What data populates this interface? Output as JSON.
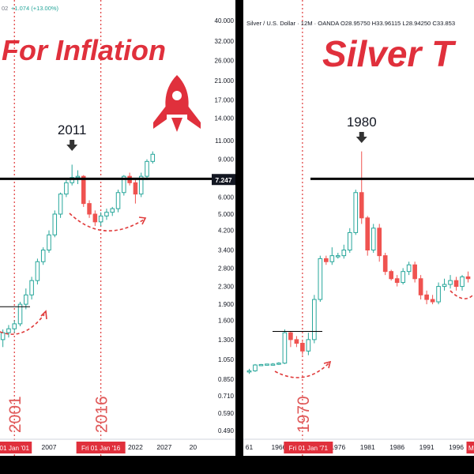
{
  "colors": {
    "up_fill": "#ffffff",
    "up_border": "#26a69a",
    "down": "#ef5350",
    "accent_red": "#e0303c",
    "guide_red": "#e03a3a",
    "axis_text": "#131722",
    "dark_line": "#000000",
    "frame": "#000000"
  },
  "chart_data": [
    {
      "type": "candlestick",
      "title": "For Inflation",
      "header_text": "+1.074 (+13.00%)",
      "header_prefix": "02",
      "y_scale": "log",
      "ylim": [
        0.45,
        42
      ],
      "y_ticks": [
        "40.000",
        "32.000",
        "26.000",
        "21.000",
        "17.000",
        "14.000",
        "11.000",
        "9.000",
        "7.247",
        "6.000",
        "5.000",
        "4.200",
        "3.400",
        "2.800",
        "2.300",
        "1.900",
        "1.600",
        "1.300",
        "1.050",
        "0.850",
        "0.710",
        "0.590",
        "0.490"
      ],
      "price_marker": "7.247",
      "x_ticks": [
        "07",
        "2007",
        "20",
        "2022",
        "2027",
        "20"
      ],
      "x_ticks_values": [
        1996.6,
        2007,
        2012.5,
        2022,
        2027,
        2032
      ],
      "xlim": [
        1998.5,
        2032.5
      ],
      "date_tags": [
        {
          "text": "01 Jan '01",
          "x": 2001
        },
        {
          "text": "Fri 01 Jan '16",
          "x": 2016
        }
      ],
      "vertical_labels": [
        {
          "text": "2001",
          "x": 2001
        },
        {
          "text": "2016",
          "x": 2016
        }
      ],
      "annotations": [
        {
          "text": "2011",
          "x": 2011
        }
      ],
      "horizontal_levels": [
        7.3,
        1.85
      ],
      "candles": [
        {
          "x": 1999,
          "o": 1.3,
          "h": 1.45,
          "l": 1.2,
          "c": 1.4
        },
        {
          "x": 2000,
          "o": 1.4,
          "h": 1.52,
          "l": 1.33,
          "c": 1.46
        },
        {
          "x": 2001,
          "o": 1.46,
          "h": 1.6,
          "l": 1.4,
          "c": 1.54
        },
        {
          "x": 2002,
          "o": 1.54,
          "h": 1.95,
          "l": 1.5,
          "c": 1.9
        },
        {
          "x": 2003,
          "o": 1.9,
          "h": 2.25,
          "l": 1.8,
          "c": 2.1
        },
        {
          "x": 2004,
          "o": 2.1,
          "h": 2.55,
          "l": 2.0,
          "c": 2.45
        },
        {
          "x": 2005,
          "o": 2.45,
          "h": 3.1,
          "l": 2.35,
          "c": 3.0
        },
        {
          "x": 2006,
          "o": 3.0,
          "h": 3.5,
          "l": 2.9,
          "c": 3.4
        },
        {
          "x": 2007,
          "o": 3.4,
          "h": 4.2,
          "l": 3.3,
          "c": 4.0
        },
        {
          "x": 2008,
          "o": 4.0,
          "h": 5.2,
          "l": 3.9,
          "c": 5.0
        },
        {
          "x": 2009,
          "o": 5.0,
          "h": 6.3,
          "l": 4.8,
          "c": 6.2
        },
        {
          "x": 2010,
          "o": 6.2,
          "h": 7.2,
          "l": 6.0,
          "c": 7.0
        },
        {
          "x": 2011,
          "o": 7.0,
          "h": 8.5,
          "l": 6.8,
          "c": 7.4
        },
        {
          "x": 2012,
          "o": 7.4,
          "h": 8.0,
          "l": 6.9,
          "c": 7.5
        },
        {
          "x": 2013,
          "o": 7.5,
          "h": 7.6,
          "l": 5.4,
          "c": 5.6
        },
        {
          "x": 2014,
          "o": 5.6,
          "h": 5.8,
          "l": 4.8,
          "c": 5.0
        },
        {
          "x": 2015,
          "o": 5.0,
          "h": 5.2,
          "l": 4.4,
          "c": 4.6
        },
        {
          "x": 2016,
          "o": 4.6,
          "h": 5.1,
          "l": 4.4,
          "c": 4.9
        },
        {
          "x": 2017,
          "o": 4.9,
          "h": 5.3,
          "l": 4.7,
          "c": 5.1
        },
        {
          "x": 2018,
          "o": 5.1,
          "h": 5.4,
          "l": 4.9,
          "c": 5.3
        },
        {
          "x": 2019,
          "o": 5.3,
          "h": 6.5,
          "l": 5.1,
          "c": 6.3
        },
        {
          "x": 2020,
          "o": 6.3,
          "h": 7.6,
          "l": 6.1,
          "c": 7.5
        },
        {
          "x": 2021,
          "o": 7.5,
          "h": 7.8,
          "l": 6.8,
          "c": 7.0
        },
        {
          "x": 2022,
          "o": 7.0,
          "h": 7.3,
          "l": 5.6,
          "c": 6.2
        },
        {
          "x": 2023,
          "o": 6.2,
          "h": 7.8,
          "l": 6.0,
          "c": 7.5
        },
        {
          "x": 2024,
          "o": 7.5,
          "h": 9.0,
          "l": 7.2,
          "c": 8.8
        },
        {
          "x": 2025,
          "o": 8.8,
          "h": 9.8,
          "l": 8.6,
          "c": 9.5
        }
      ]
    },
    {
      "type": "candlestick",
      "title": "Silver T",
      "header_text": "Silver / U.S. Dollar · 12M · OANDA  O28.95750  H33.96115  L28.94250  C33.853",
      "y_scale": "log",
      "ylim": [
        0.45,
        42
      ],
      "x_ticks": [
        "61",
        "1966",
        "1976",
        "1981",
        "1986",
        "1991",
        "1996"
      ],
      "x_ticks_values": [
        1961,
        1966,
        1976,
        1981,
        1986,
        1991,
        1996
      ],
      "xlim": [
        1960,
        1999
      ],
      "date_tags": [
        {
          "text": "Fri 01 Jan '71",
          "x": 1971
        },
        {
          "text": "Mo",
          "x": 1998.8
        }
      ],
      "vertical_labels": [
        {
          "text": "1970",
          "x": 1970
        }
      ],
      "annotations": [
        {
          "text": "1980",
          "x": 1980
        }
      ],
      "horizontal_levels": [
        7.3,
        1.42
      ],
      "candles": [
        {
          "x": 1961,
          "o": 0.92,
          "h": 0.95,
          "l": 0.9,
          "c": 0.93
        },
        {
          "x": 1962,
          "o": 0.93,
          "h": 1.0,
          "l": 0.92,
          "c": 0.99
        },
        {
          "x": 1963,
          "o": 0.99,
          "h": 1.0,
          "l": 0.98,
          "c": 0.995
        },
        {
          "x": 1964,
          "o": 0.995,
          "h": 1.0,
          "l": 0.99,
          "c": 1.0
        },
        {
          "x": 1965,
          "o": 1.0,
          "h": 1.01,
          "l": 0.99,
          "c": 1.0
        },
        {
          "x": 1966,
          "o": 1.0,
          "h": 1.02,
          "l": 0.99,
          "c": 1.01
        },
        {
          "x": 1967,
          "o": 1.01,
          "h": 1.45,
          "l": 1.0,
          "c": 1.4
        },
        {
          "x": 1968,
          "o": 1.4,
          "h": 1.42,
          "l": 1.2,
          "c": 1.3
        },
        {
          "x": 1969,
          "o": 1.3,
          "h": 1.35,
          "l": 1.2,
          "c": 1.25
        },
        {
          "x": 1970,
          "o": 1.25,
          "h": 1.3,
          "l": 1.1,
          "c": 1.15
        },
        {
          "x": 1971,
          "o": 1.15,
          "h": 1.4,
          "l": 1.1,
          "c": 1.3
        },
        {
          "x": 1972,
          "o": 1.3,
          "h": 2.1,
          "l": 1.25,
          "c": 2.0
        },
        {
          "x": 1973,
          "o": 2.0,
          "h": 3.2,
          "l": 1.95,
          "c": 3.1
        },
        {
          "x": 1974,
          "o": 3.1,
          "h": 3.2,
          "l": 2.9,
          "c": 3.0
        },
        {
          "x": 1975,
          "o": 3.0,
          "h": 3.5,
          "l": 2.9,
          "c": 3.2
        },
        {
          "x": 1976,
          "o": 3.2,
          "h": 3.3,
          "l": 3.1,
          "c": 3.2
        },
        {
          "x": 1977,
          "o": 3.2,
          "h": 3.6,
          "l": 3.1,
          "c": 3.4
        },
        {
          "x": 1978,
          "o": 3.4,
          "h": 4.3,
          "l": 3.3,
          "c": 4.1
        },
        {
          "x": 1979,
          "o": 4.1,
          "h": 6.5,
          "l": 4.0,
          "c": 6.3
        },
        {
          "x": 1980,
          "o": 6.3,
          "h": 9.8,
          "l": 4.5,
          "c": 4.8
        },
        {
          "x": 1981,
          "o": 4.8,
          "h": 4.9,
          "l": 3.2,
          "c": 3.4
        },
        {
          "x": 1982,
          "o": 3.4,
          "h": 4.5,
          "l": 3.3,
          "c": 4.3
        },
        {
          "x": 1983,
          "o": 4.3,
          "h": 4.5,
          "l": 3.0,
          "c": 3.2
        },
        {
          "x": 1984,
          "o": 3.2,
          "h": 3.3,
          "l": 2.6,
          "c": 2.7
        },
        {
          "x": 1985,
          "o": 2.7,
          "h": 2.75,
          "l": 2.45,
          "c": 2.5
        },
        {
          "x": 1986,
          "o": 2.5,
          "h": 2.6,
          "l": 2.3,
          "c": 2.4
        },
        {
          "x": 1987,
          "o": 2.4,
          "h": 2.8,
          "l": 2.35,
          "c": 2.7
        },
        {
          "x": 1988,
          "o": 2.7,
          "h": 3.0,
          "l": 2.6,
          "c": 2.9
        },
        {
          "x": 1989,
          "o": 2.9,
          "h": 3.0,
          "l": 2.4,
          "c": 2.5
        },
        {
          "x": 1990,
          "o": 2.5,
          "h": 2.6,
          "l": 2.0,
          "c": 2.1
        },
        {
          "x": 1991,
          "o": 2.1,
          "h": 2.2,
          "l": 1.9,
          "c": 2.0
        },
        {
          "x": 1992,
          "o": 2.0,
          "h": 2.1,
          "l": 1.9,
          "c": 1.95
        },
        {
          "x": 1993,
          "o": 1.95,
          "h": 2.4,
          "l": 1.9,
          "c": 2.3
        },
        {
          "x": 1994,
          "o": 2.3,
          "h": 2.5,
          "l": 2.2,
          "c": 2.35
        },
        {
          "x": 1995,
          "o": 2.35,
          "h": 2.6,
          "l": 2.25,
          "c": 2.45
        },
        {
          "x": 1996,
          "o": 2.45,
          "h": 2.55,
          "l": 2.2,
          "c": 2.3
        },
        {
          "x": 1997,
          "o": 2.3,
          "h": 2.6,
          "l": 2.2,
          "c": 2.55
        },
        {
          "x": 1998,
          "o": 2.55,
          "h": 2.7,
          "l": 2.4,
          "c": 2.5
        }
      ]
    }
  ]
}
